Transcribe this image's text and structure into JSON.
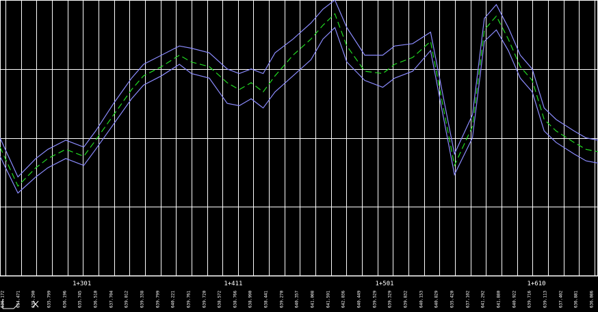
{
  "colors": {
    "background": "#000000",
    "grid": "#ffffff",
    "offset_lines": "#8c8cff",
    "center_line": "#22dd22",
    "text": "#ffffff"
  },
  "icons": {
    "ucs": "ucs-axis-icon"
  },
  "chart_data": {
    "type": "line",
    "title": "",
    "xlabel": "",
    "ylabel": "",
    "grid": true,
    "chainage_labels": [
      "1+301",
      "1+411",
      "1+501",
      "1+610"
    ],
    "station_elevations": [
      "636.172",
      "634.471",
      "635.290",
      "635.799",
      "636.196",
      "635.745",
      "636.510",
      "637.704",
      "639.012",
      "639.338",
      "639.799",
      "640.221",
      "639.761",
      "639.720",
      "638.572",
      "638.766",
      "638.990",
      "638.441",
      "639.270",
      "640.357",
      "641.008",
      "641.591",
      "642.036",
      "640.449",
      "639.529",
      "639.329",
      "639.832",
      "640.153",
      "640.829",
      "635.420",
      "637.102",
      "641.292",
      "641.880",
      "640.922",
      "639.716",
      "639.113",
      "637.402",
      "636.881",
      "636.086"
    ],
    "x": [
      0,
      0.03,
      0.06,
      0.08,
      0.11,
      0.14,
      0.16,
      0.19,
      0.22,
      0.24,
      0.27,
      0.3,
      0.32,
      0.35,
      0.38,
      0.4,
      0.42,
      0.44,
      0.46,
      0.49,
      0.52,
      0.54,
      0.56,
      0.58,
      0.61,
      0.64,
      0.66,
      0.69,
      0.72,
      0.76,
      0.79,
      0.81,
      0.83,
      0.85,
      0.87,
      0.89,
      0.91,
      0.93,
      0.96,
      0.98,
      1
    ],
    "series": [
      {
        "values": [
          636.2,
          634.5,
          635.3,
          635.7,
          636.1,
          635.8,
          636.5,
          637.6,
          638.7,
          639.3,
          639.7,
          640.2,
          639.9,
          639.7,
          639.0,
          638.7,
          639.0,
          638.6,
          639.3,
          640.2,
          640.9,
          641.5,
          642.0,
          640.6,
          639.5,
          639.4,
          639.8,
          640.1,
          640.8,
          635.4,
          637.1,
          641.3,
          641.9,
          640.9,
          639.7,
          639.1,
          637.4,
          636.9,
          636.4,
          636.1,
          636.0
        ]
      },
      {
        "values": [
          636.6,
          634.9,
          635.7,
          636.1,
          636.5,
          636.2,
          636.9,
          638.1,
          639.2,
          639.8,
          640.2,
          640.6,
          640.5,
          640.3,
          639.6,
          639.4,
          639.6,
          639.4,
          640.3,
          640.9,
          641.6,
          642.2,
          642.6,
          641.4,
          640.2,
          640.2,
          640.6,
          640.7,
          641.2,
          635.9,
          637.6,
          641.8,
          642.4,
          641.4,
          640.2,
          639.6,
          637.9,
          637.4,
          636.9,
          636.6,
          636.5
        ]
      },
      {
        "values": [
          635.8,
          634.2,
          634.9,
          635.3,
          635.7,
          635.4,
          636.1,
          637.2,
          638.3,
          638.9,
          639.3,
          639.8,
          639.4,
          639.2,
          638.1,
          638.0,
          638.3,
          637.9,
          638.6,
          639.3,
          640.0,
          640.9,
          641.4,
          639.9,
          639.1,
          638.8,
          639.2,
          639.5,
          640.4,
          635.0,
          636.6,
          640.8,
          641.3,
          640.4,
          639.2,
          638.6,
          636.9,
          636.4,
          635.9,
          635.6,
          635.5
        ]
      }
    ],
    "ylim": [
      630.6,
      642.6
    ]
  }
}
